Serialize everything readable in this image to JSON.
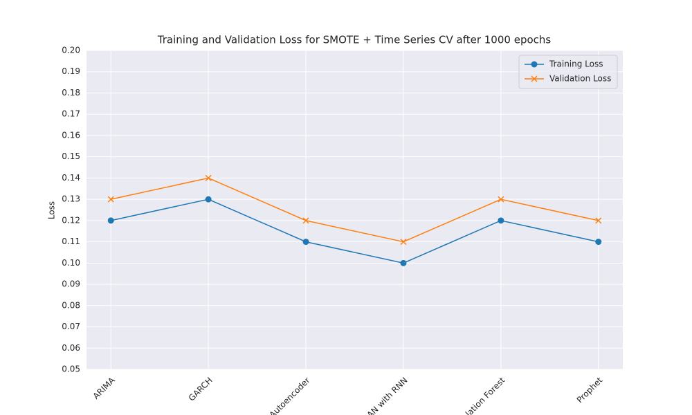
{
  "chart_data": {
    "type": "line",
    "title": "Training and Validation Loss for SMOTE + Time Series CV after 1000 epochs",
    "y_label": "Loss",
    "categories": [
      "ARIMA",
      "GARCH",
      "Autoencoder",
      "GAN with RNN",
      "Isolation Forest",
      "Prophet"
    ],
    "series": [
      {
        "name": "Training Loss",
        "color": "#1f77b4",
        "marker": "circle",
        "values": [
          0.12,
          0.13,
          0.11,
          0.1,
          0.12,
          0.11
        ]
      },
      {
        "name": "Validation Loss",
        "color": "#ff7f0e",
        "marker": "x",
        "values": [
          0.13,
          0.14,
          0.12,
          0.11,
          0.13,
          0.12
        ]
      }
    ],
    "ylim": [
      0.05,
      0.2
    ],
    "yticks": [
      0.05,
      0.06,
      0.07,
      0.08,
      0.09,
      {
        "value": 0.1,
        "label": "0.10"
      },
      0.11,
      0.12,
      0.13,
      0.14,
      0.15,
      0.16,
      0.17,
      0.18,
      0.19,
      {
        "value": 0.2,
        "label": "0.20"
      }
    ],
    "grid": true,
    "legend": "upper right"
  }
}
